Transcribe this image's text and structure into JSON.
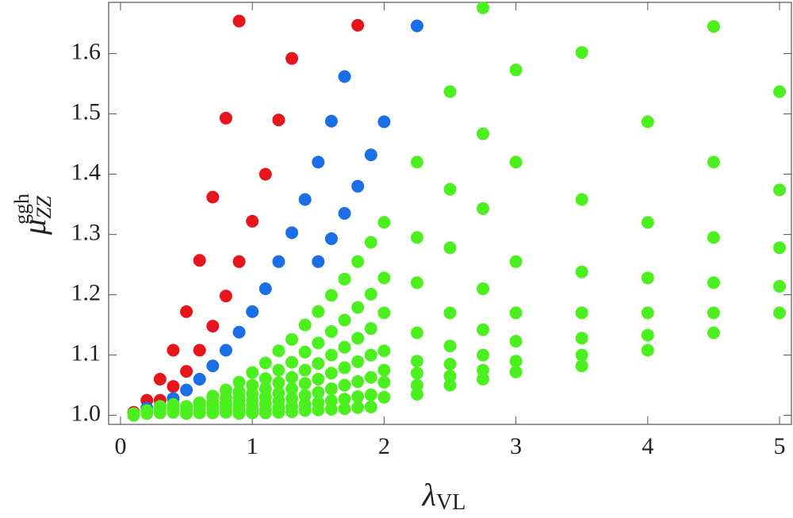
{
  "chart_data": {
    "type": "scatter",
    "xlabel": {
      "symbol": "λ",
      "subscript": "VL"
    },
    "ylabel": {
      "symbol": "μ",
      "subscript": "ZZ",
      "superscript": "ggh"
    },
    "xlim": [
      -0.09,
      5.09
    ],
    "ylim": [
      0.985,
      1.685
    ],
    "xticks": [
      0,
      1,
      2,
      3,
      4,
      5
    ],
    "yticks": [
      {
        "value": 1,
        "label": "1.0"
      },
      1.1,
      1.2,
      1.3,
      1.4,
      1.5,
      1.6
    ],
    "series": [
      {
        "color": "#e8141c",
        "x": [
          0.1,
          0.2,
          0.3,
          0.3,
          0.4,
          0.4,
          0.5,
          0.5,
          0.6,
          0.6,
          0.7,
          0.7,
          0.8,
          0.8,
          0.9,
          0.9,
          1.0,
          1.1,
          1.2,
          1.3,
          1.8
        ],
        "values": [
          1.005,
          1.025,
          1.025,
          1.06,
          1.048,
          1.108,
          1.073,
          1.172,
          1.108,
          1.257,
          1.148,
          1.362,
          1.198,
          1.493,
          1.255,
          1.654,
          1.322,
          1.4,
          1.49,
          1.592,
          1.647
        ]
      },
      {
        "color": "#1a6ee6",
        "x": [
          0.2,
          0.3,
          0.4,
          0.5,
          0.6,
          0.7,
          0.8,
          0.9,
          1.0,
          1.1,
          1.2,
          1.3,
          1.4,
          1.5,
          1.5,
          1.6,
          1.6,
          1.7,
          1.7,
          1.8,
          1.9,
          2.0,
          2.25
        ],
        "values": [
          1.012,
          1.015,
          1.028,
          1.042,
          1.06,
          1.082,
          1.108,
          1.138,
          1.172,
          1.21,
          1.255,
          1.303,
          1.358,
          1.42,
          1.255,
          1.488,
          1.293,
          1.562,
          1.335,
          1.38,
          1.432,
          1.487,
          1.646
        ]
      },
      {
        "color": "#4cf01e",
        "x": [
          0.1,
          0.1,
          0.2,
          0.2,
          0.3,
          0.3,
          0.3,
          0.4,
          0.4,
          0.4,
          0.5,
          0.5,
          0.5,
          0.6,
          0.6,
          0.6,
          0.6,
          0.7,
          0.7,
          0.7,
          0.7,
          0.7,
          0.8,
          0.8,
          0.8,
          0.8,
          0.8,
          0.8,
          0.9,
          0.9,
          0.9,
          0.9,
          0.9,
          0.9,
          0.9,
          1.0,
          1.0,
          1.0,
          1.0,
          1.0,
          1.0,
          1.0,
          1.1,
          1.1,
          1.1,
          1.1,
          1.1,
          1.1,
          1.1,
          1.2,
          1.2,
          1.2,
          1.2,
          1.2,
          1.2,
          1.2,
          1.3,
          1.3,
          1.3,
          1.3,
          1.3,
          1.3,
          1.3,
          1.4,
          1.4,
          1.4,
          1.4,
          1.4,
          1.4,
          1.4,
          1.5,
          1.5,
          1.5,
          1.5,
          1.5,
          1.5,
          1.5,
          1.6,
          1.6,
          1.6,
          1.6,
          1.6,
          1.6,
          1.6,
          1.7,
          1.7,
          1.7,
          1.7,
          1.7,
          1.7,
          1.7,
          1.8,
          1.8,
          1.8,
          1.8,
          1.8,
          1.8,
          1.8,
          1.9,
          1.9,
          1.9,
          1.9,
          1.9,
          1.9,
          1.9,
          2.0,
          2.0,
          2.0,
          2.0,
          2.0,
          2.0,
          2.0,
          2.25,
          2.25,
          2.25,
          2.25,
          2.25,
          2.25,
          2.25,
          2.25,
          2.5,
          2.5,
          2.5,
          2.5,
          2.5,
          2.5,
          2.5,
          2.5,
          2.75,
          2.75,
          2.75,
          2.75,
          2.75,
          2.75,
          2.75,
          2.75,
          3,
          3,
          3,
          3,
          3,
          3,
          3,
          3.5,
          3.5,
          3.5,
          3.5,
          3.5,
          3.5,
          3.5,
          4,
          4,
          4,
          4,
          4,
          4,
          4.5,
          4.5,
          4.5,
          4.5,
          4.5,
          4.5,
          5,
          5,
          5,
          5,
          5
        ],
        "values": [
          1.0,
          1.003,
          1.003,
          1.008,
          1.004,
          1.01,
          1.015,
          1.005,
          1.012,
          1.018,
          1.015,
          1.008,
          1.003,
          1.021,
          1.015,
          1.01,
          1.004,
          1.032,
          1.022,
          1.016,
          1.011,
          1.004,
          1.042,
          1.029,
          1.021,
          1.015,
          1.009,
          1.005,
          1.055,
          1.039,
          1.028,
          1.019,
          1.012,
          1.007,
          1.003,
          1.071,
          1.05,
          1.036,
          1.025,
          1.016,
          1.009,
          1.004,
          1.087,
          1.061,
          1.044,
          1.03,
          1.019,
          1.01,
          1.004,
          1.107,
          1.075,
          1.054,
          1.037,
          1.024,
          1.013,
          1.005,
          1.126,
          1.088,
          1.063,
          1.044,
          1.028,
          1.015,
          1.006,
          1.15,
          1.105,
          1.075,
          1.053,
          1.033,
          1.018,
          1.008,
          1.172,
          1.12,
          1.086,
          1.06,
          1.038,
          1.021,
          1.009,
          1.199,
          1.139,
          1.1,
          1.07,
          1.044,
          1.024,
          1.01,
          1.226,
          1.158,
          1.113,
          1.079,
          1.05,
          1.027,
          1.011,
          1.255,
          1.179,
          1.128,
          1.089,
          1.056,
          1.031,
          1.013,
          1.287,
          1.201,
          1.144,
          1.1,
          1.063,
          1.034,
          1.014,
          1.32,
          1.228,
          1.17,
          1.107,
          1.075,
          1.055,
          1.03,
          1.42,
          1.295,
          1.22,
          1.137,
          1.09,
          1.07,
          1.05,
          1.035,
          1.537,
          1.375,
          1.278,
          1.17,
          1.115,
          1.085,
          1.065,
          1.05,
          1.676,
          1.467,
          1.343,
          1.21,
          1.142,
          1.1,
          1.075,
          1.06,
          1.573,
          1.42,
          1.255,
          1.17,
          1.123,
          1.09,
          1.072,
          1.602,
          1.358,
          1.238,
          1.17,
          1.128,
          1.1,
          1.082,
          1.487,
          1.32,
          1.228,
          1.17,
          1.133,
          1.108,
          1.645,
          1.42,
          1.295,
          1.22,
          1.17,
          1.137,
          1.537,
          1.374,
          1.278,
          1.214,
          1.17
        ]
      }
    ]
  }
}
